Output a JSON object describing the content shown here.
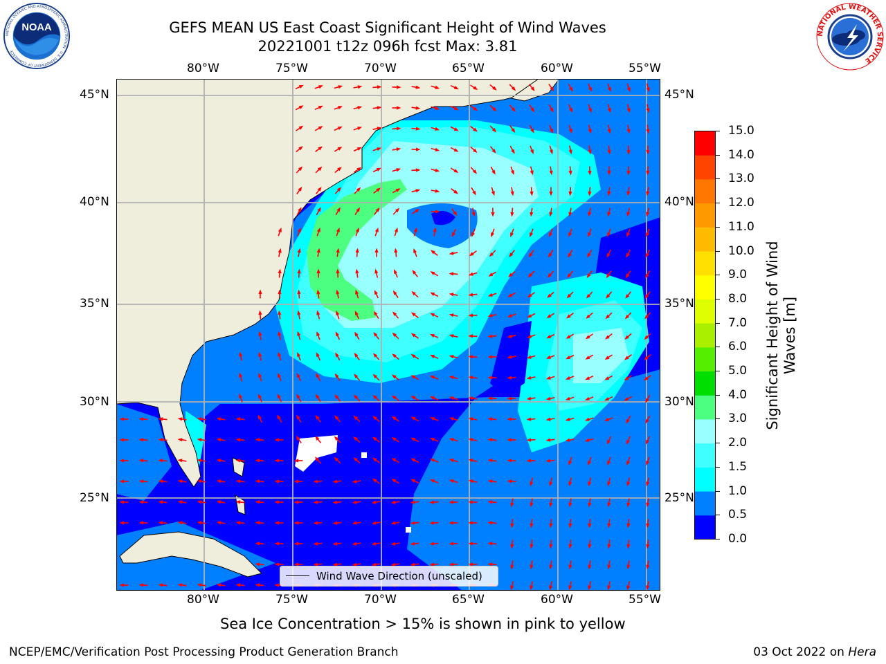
{
  "header": {
    "title_line1": "GEFS MEAN US East Coast Significant Height of Wind Waves",
    "title_line2": "20221001 t12z 096h fcst   Max: 3.81"
  },
  "logos": {
    "left": "noaa-logo",
    "left_text": "NATIONAL OCEANIC AND ATMOSPHERIC ADMINISTRATION · U.S. DEPARTMENT OF COMMERCE",
    "right": "nws-logo",
    "right_text": "NATIONAL WEATHER SERVICE"
  },
  "map": {
    "lon_labels": [
      "80°W",
      "75°W",
      "70°W",
      "65°W",
      "60°W",
      "55°W"
    ],
    "lat_labels": [
      "45°N",
      "40°N",
      "35°N",
      "30°N",
      "25°N"
    ],
    "extent": {
      "lon": [
        -85,
        -54
      ],
      "lat": [
        20.5,
        46
      ]
    },
    "colors": {
      "land": "#efeedc",
      "grid": "#b0b0b0",
      "arrows": "#ff0000"
    }
  },
  "legend": {
    "label": "Wind Wave Direction (unscaled)"
  },
  "colorbar": {
    "label": "Significant Height of Wind Waves [m]",
    "ticks": [
      "15.0",
      "14.0",
      "13.0",
      "12.0",
      "11.0",
      "10.0",
      "9.0",
      "8.0",
      "7.0",
      "6.0",
      "5.0",
      "4.0",
      "3.0",
      "2.0",
      "1.5",
      "1.0",
      "0.5",
      "0.0"
    ],
    "levels": [
      0,
      0.5,
      1.0,
      1.5,
      2.0,
      3.0,
      4.0,
      5.0,
      6.0,
      7.0,
      8.0,
      9.0,
      10.0,
      11.0,
      12.0,
      13.0,
      14.0,
      15.0
    ],
    "colors": [
      "#0000ff",
      "#0080ff",
      "#00ffff",
      "#40ffff",
      "#99ffff",
      "#4dff80",
      "#00dd00",
      "#55ee00",
      "#aaee00",
      "#ddff00",
      "#ffff00",
      "#ffe000",
      "#ffbb00",
      "#ff9900",
      "#ff7700",
      "#ff4400",
      "#ff0000"
    ]
  },
  "notes": {
    "sea_ice": "Sea Ice Concentration > 15% is shown in pink to yellow"
  },
  "footer": {
    "left": "NCEP/EMC/Verification Post Processing Product Generation Branch",
    "right_date": "03 Oct 2022 on ",
    "right_host": "Hera"
  }
}
